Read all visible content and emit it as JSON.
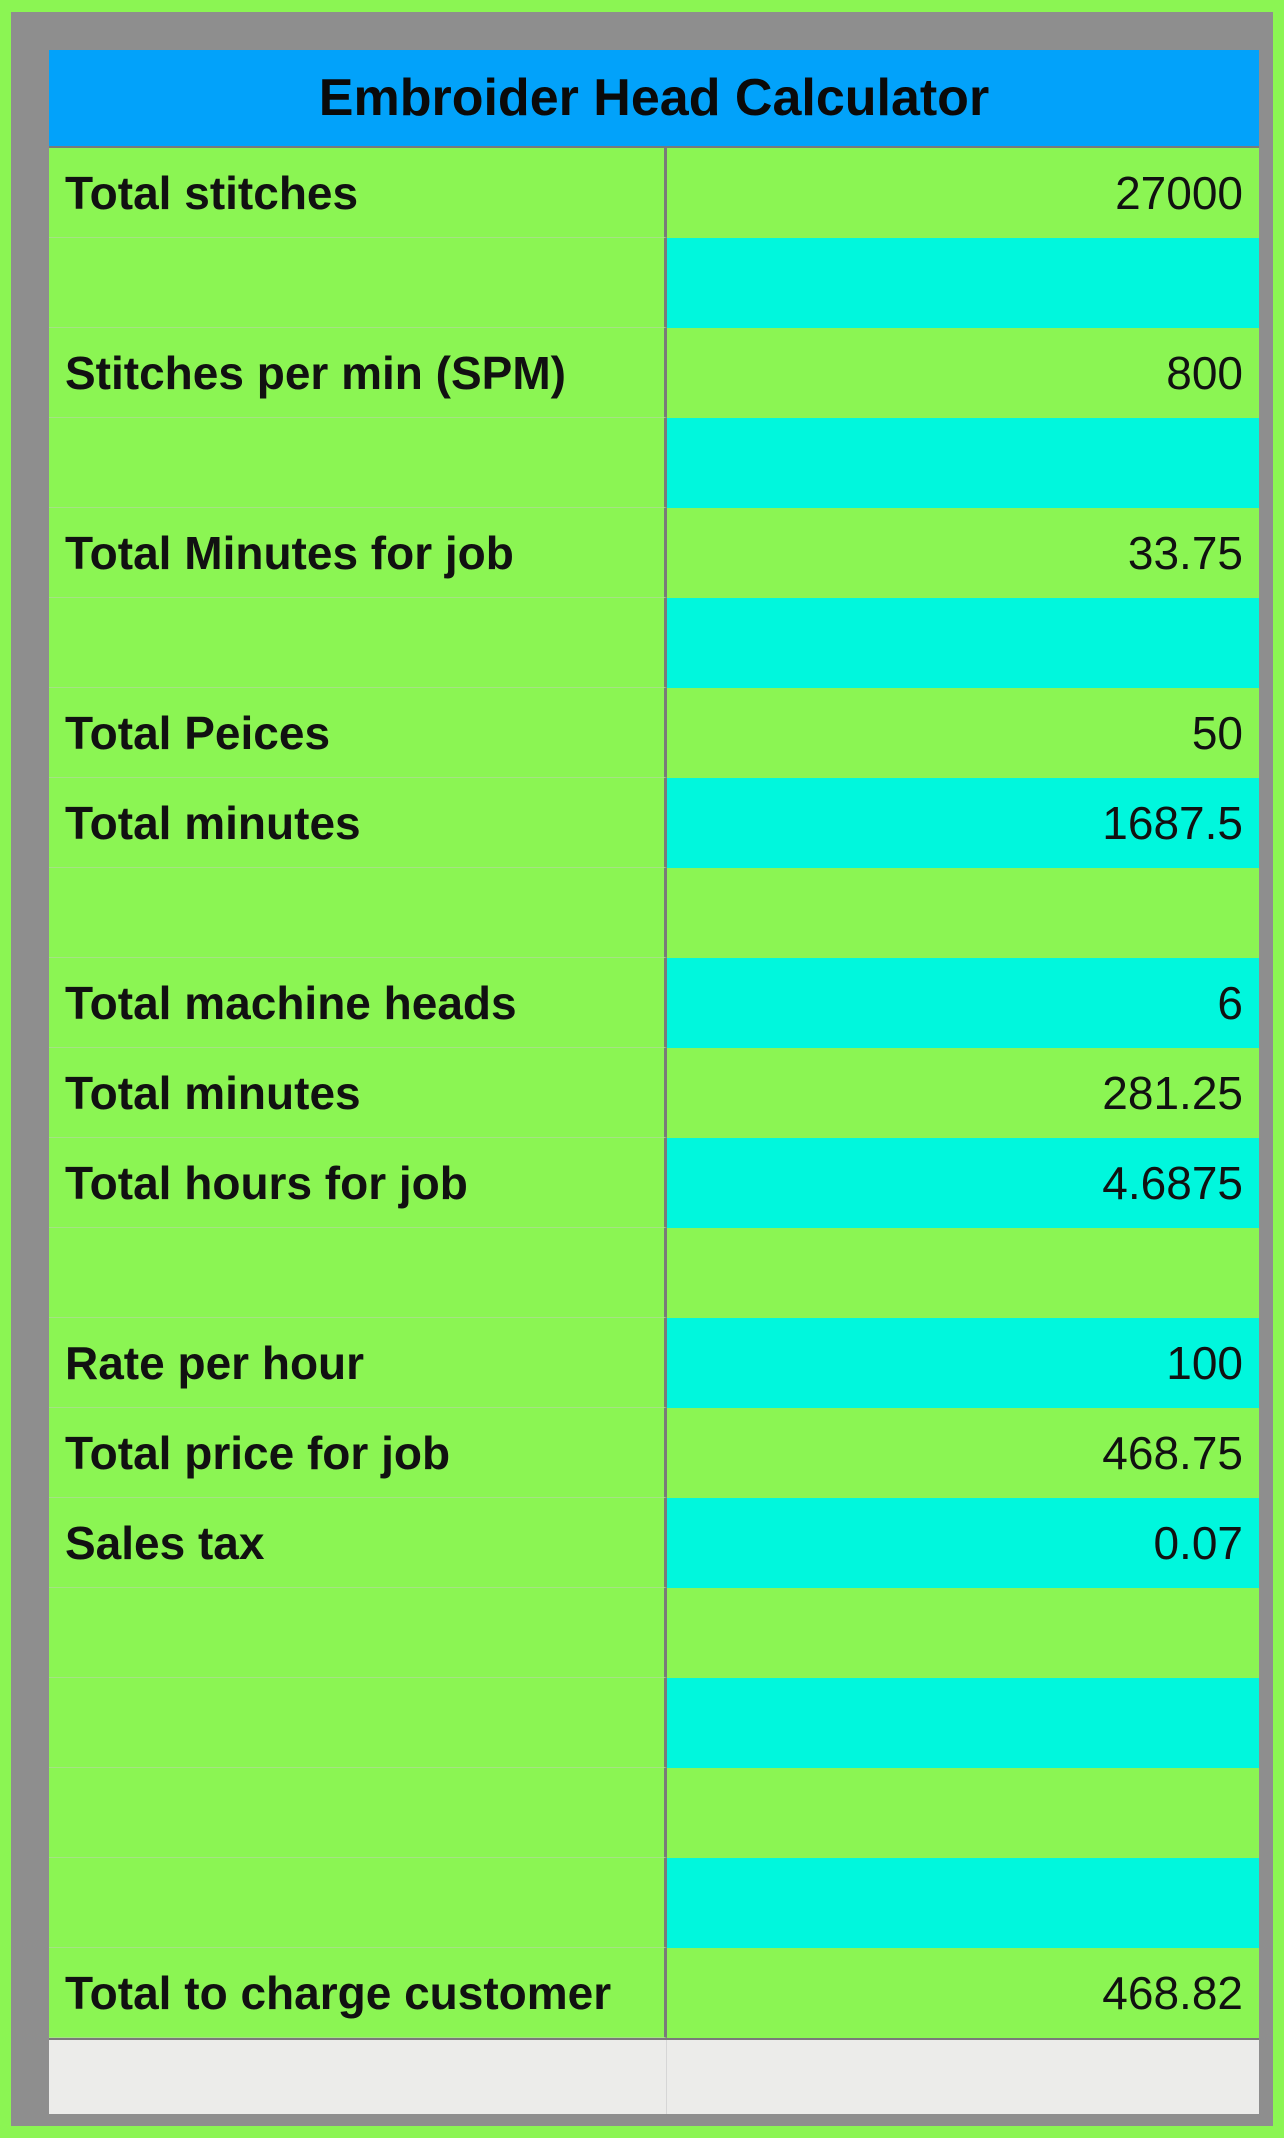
{
  "title": "Embroider Head Calculator",
  "colors": {
    "page_background": "#8bf553",
    "frame": "#8e8e8e",
    "title_background": "#02a2fa",
    "row_green": "#8bf553",
    "row_cyan": "#00f7dd",
    "footer": "#ececea"
  },
  "rows": [
    {
      "label": "Total stitches",
      "value": "27000",
      "value_color": "green"
    },
    {
      "label": "",
      "value": "",
      "value_color": "cyan"
    },
    {
      "label": "Stitches per min (SPM)",
      "value": "800",
      "value_color": "green"
    },
    {
      "label": "",
      "value": "",
      "value_color": "cyan"
    },
    {
      "label": "Total Minutes for job",
      "value": "33.75",
      "value_color": "green"
    },
    {
      "label": "",
      "value": "",
      "value_color": "cyan"
    },
    {
      "label": "Total Peices",
      "value": "50",
      "value_color": "green"
    },
    {
      "label": "Total minutes",
      "value": "1687.5",
      "value_color": "cyan"
    },
    {
      "label": "",
      "value": "",
      "value_color": "green"
    },
    {
      "label": "Total machine heads",
      "value": "6",
      "value_color": "cyan"
    },
    {
      "label": "Total minutes",
      "value": "281.25",
      "value_color": "green"
    },
    {
      "label": "Total hours for job",
      "value": "4.6875",
      "value_color": "cyan"
    },
    {
      "label": "",
      "value": "",
      "value_color": "green"
    },
    {
      "label": "Rate per hour",
      "value": "100",
      "value_color": "cyan"
    },
    {
      "label": "Total price for job",
      "value": "468.75",
      "value_color": "green"
    },
    {
      "label": "Sales tax",
      "value": "0.07",
      "value_color": "cyan"
    },
    {
      "label": "",
      "value": "",
      "value_color": "green"
    },
    {
      "label": "",
      "value": "",
      "value_color": "cyan"
    },
    {
      "label": "",
      "value": "",
      "value_color": "green"
    },
    {
      "label": "",
      "value": "",
      "value_color": "cyan"
    },
    {
      "label": "Total to charge customer",
      "value": "468.82",
      "value_color": "green"
    }
  ]
}
